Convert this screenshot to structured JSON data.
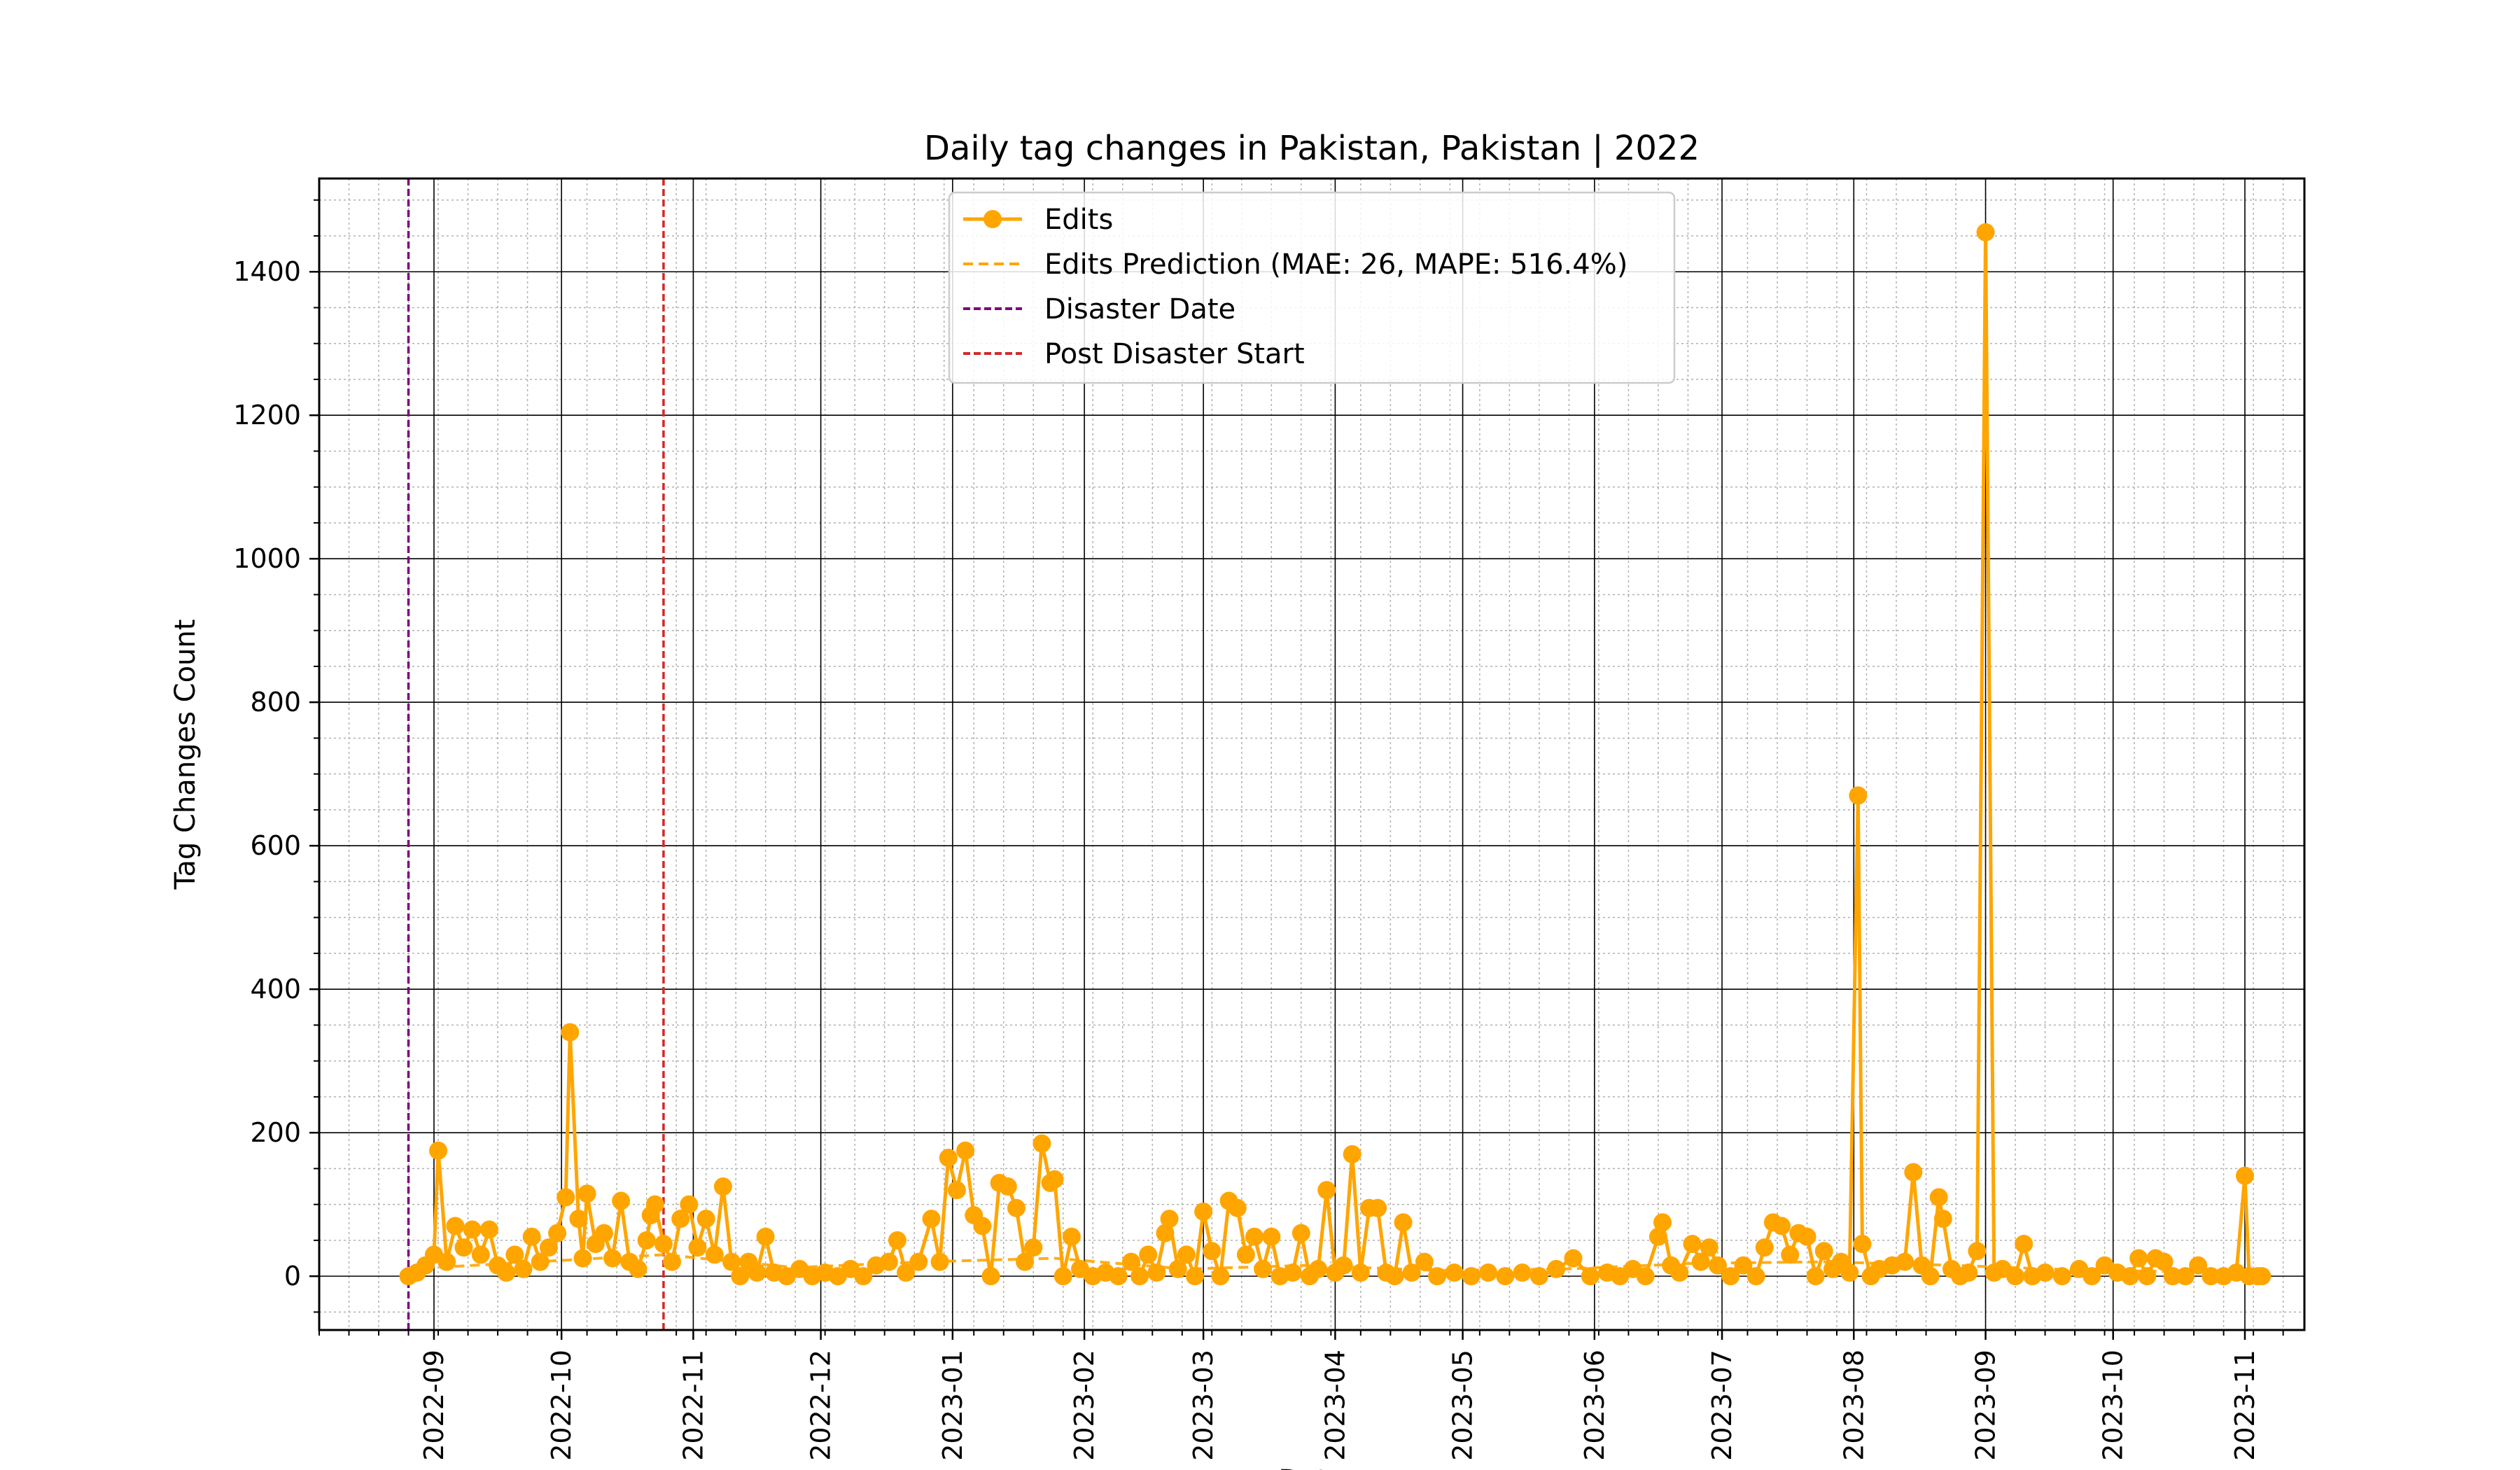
{
  "chart_data": {
    "type": "line",
    "title": "Daily tag changes in Pakistan, Pakistan | 2022",
    "xlabel": "Date",
    "ylabel": "Tag Changes Count",
    "xlim": [
      "2022-08-05",
      "2023-11-15"
    ],
    "ylim": [
      -75,
      1530
    ],
    "grid": true,
    "legend_position": "top-center",
    "y_ticks": [
      0,
      200,
      400,
      600,
      800,
      1000,
      1200,
      1400
    ],
    "x_ticks": [
      "2022-09",
      "2022-10",
      "2022-11",
      "2022-12",
      "2023-01",
      "2023-02",
      "2023-03",
      "2023-04",
      "2023-05",
      "2023-06",
      "2023-07",
      "2023-08",
      "2023-09",
      "2023-10",
      "2023-11"
    ],
    "x_tick_dates": [
      "2022-09-01",
      "2022-10-01",
      "2022-11-01",
      "2022-12-01",
      "2023-01-01",
      "2023-02-01",
      "2023-03-01",
      "2023-04-01",
      "2023-05-01",
      "2023-06-01",
      "2023-07-01",
      "2023-08-01",
      "2023-09-01",
      "2023-10-01",
      "2023-11-01"
    ],
    "vlines": [
      {
        "name": "Disaster Date",
        "date": "2022-08-26",
        "color": "#800080"
      },
      {
        "name": "Post Disaster Start",
        "date": "2022-10-25",
        "color": "#d62728"
      }
    ],
    "series": [
      {
        "name": "Edits",
        "color": "#FFA500",
        "points": [
          [
            "2022-08-26",
            0
          ],
          [
            "2022-08-28",
            5
          ],
          [
            "2022-08-30",
            15
          ],
          [
            "2022-09-01",
            30
          ],
          [
            "2022-09-02",
            175
          ],
          [
            "2022-09-04",
            20
          ],
          [
            "2022-09-06",
            70
          ],
          [
            "2022-09-08",
            40
          ],
          [
            "2022-09-10",
            65
          ],
          [
            "2022-09-12",
            30
          ],
          [
            "2022-09-14",
            65
          ],
          [
            "2022-09-16",
            15
          ],
          [
            "2022-09-18",
            5
          ],
          [
            "2022-09-20",
            30
          ],
          [
            "2022-09-22",
            10
          ],
          [
            "2022-09-24",
            55
          ],
          [
            "2022-09-26",
            20
          ],
          [
            "2022-09-28",
            40
          ],
          [
            "2022-09-30",
            60
          ],
          [
            "2022-10-02",
            110
          ],
          [
            "2022-10-03",
            340
          ],
          [
            "2022-10-05",
            80
          ],
          [
            "2022-10-06",
            25
          ],
          [
            "2022-10-07",
            115
          ],
          [
            "2022-10-09",
            45
          ],
          [
            "2022-10-11",
            60
          ],
          [
            "2022-10-13",
            25
          ],
          [
            "2022-10-15",
            105
          ],
          [
            "2022-10-17",
            20
          ],
          [
            "2022-10-19",
            10
          ],
          [
            "2022-10-21",
            50
          ],
          [
            "2022-10-22",
            85
          ],
          [
            "2022-10-23",
            100
          ],
          [
            "2022-10-25",
            45
          ],
          [
            "2022-10-27",
            20
          ],
          [
            "2022-10-29",
            80
          ],
          [
            "2022-10-31",
            100
          ],
          [
            "2022-11-02",
            40
          ],
          [
            "2022-11-04",
            80
          ],
          [
            "2022-11-06",
            30
          ],
          [
            "2022-11-08",
            125
          ],
          [
            "2022-11-10",
            20
          ],
          [
            "2022-11-12",
            0
          ],
          [
            "2022-11-14",
            20
          ],
          [
            "2022-11-16",
            5
          ],
          [
            "2022-11-18",
            55
          ],
          [
            "2022-11-20",
            5
          ],
          [
            "2022-11-23",
            0
          ],
          [
            "2022-11-26",
            10
          ],
          [
            "2022-11-29",
            0
          ],
          [
            "2022-12-02",
            5
          ],
          [
            "2022-12-05",
            0
          ],
          [
            "2022-12-08",
            10
          ],
          [
            "2022-12-11",
            0
          ],
          [
            "2022-12-14",
            15
          ],
          [
            "2022-12-17",
            20
          ],
          [
            "2022-12-19",
            50
          ],
          [
            "2022-12-21",
            5
          ],
          [
            "2022-12-24",
            20
          ],
          [
            "2022-12-27",
            80
          ],
          [
            "2022-12-29",
            20
          ],
          [
            "2022-12-31",
            165
          ],
          [
            "2023-01-02",
            120
          ],
          [
            "2023-01-04",
            175
          ],
          [
            "2023-01-06",
            85
          ],
          [
            "2023-01-08",
            70
          ],
          [
            "2023-01-10",
            0
          ],
          [
            "2023-01-12",
            130
          ],
          [
            "2023-01-14",
            125
          ],
          [
            "2023-01-16",
            95
          ],
          [
            "2023-01-18",
            20
          ],
          [
            "2023-01-20",
            40
          ],
          [
            "2023-01-22",
            185
          ],
          [
            "2023-01-24",
            130
          ],
          [
            "2023-01-25",
            135
          ],
          [
            "2023-01-27",
            0
          ],
          [
            "2023-01-29",
            55
          ],
          [
            "2023-01-31",
            10
          ],
          [
            "2023-02-03",
            0
          ],
          [
            "2023-02-06",
            5
          ],
          [
            "2023-02-09",
            0
          ],
          [
            "2023-02-12",
            20
          ],
          [
            "2023-02-14",
            0
          ],
          [
            "2023-02-16",
            30
          ],
          [
            "2023-02-18",
            5
          ],
          [
            "2023-02-20",
            60
          ],
          [
            "2023-02-21",
            80
          ],
          [
            "2023-02-23",
            10
          ],
          [
            "2023-02-25",
            30
          ],
          [
            "2023-02-27",
            0
          ],
          [
            "2023-03-01",
            90
          ],
          [
            "2023-03-03",
            35
          ],
          [
            "2023-03-05",
            0
          ],
          [
            "2023-03-07",
            105
          ],
          [
            "2023-03-09",
            95
          ],
          [
            "2023-03-11",
            30
          ],
          [
            "2023-03-13",
            55
          ],
          [
            "2023-03-15",
            10
          ],
          [
            "2023-03-17",
            55
          ],
          [
            "2023-03-19",
            0
          ],
          [
            "2023-03-22",
            5
          ],
          [
            "2023-03-24",
            60
          ],
          [
            "2023-03-26",
            0
          ],
          [
            "2023-03-28",
            10
          ],
          [
            "2023-03-30",
            120
          ],
          [
            "2023-04-01",
            5
          ],
          [
            "2023-04-03",
            15
          ],
          [
            "2023-04-05",
            170
          ],
          [
            "2023-04-07",
            5
          ],
          [
            "2023-04-09",
            95
          ],
          [
            "2023-04-11",
            95
          ],
          [
            "2023-04-13",
            5
          ],
          [
            "2023-04-15",
            0
          ],
          [
            "2023-04-17",
            75
          ],
          [
            "2023-04-19",
            5
          ],
          [
            "2023-04-22",
            20
          ],
          [
            "2023-04-25",
            0
          ],
          [
            "2023-04-29",
            5
          ],
          [
            "2023-05-03",
            0
          ],
          [
            "2023-05-07",
            5
          ],
          [
            "2023-05-11",
            0
          ],
          [
            "2023-05-15",
            5
          ],
          [
            "2023-05-19",
            0
          ],
          [
            "2023-05-23",
            10
          ],
          [
            "2023-05-27",
            25
          ],
          [
            "2023-05-31",
            0
          ],
          [
            "2023-06-04",
            5
          ],
          [
            "2023-06-07",
            0
          ],
          [
            "2023-06-10",
            10
          ],
          [
            "2023-06-13",
            0
          ],
          [
            "2023-06-16",
            55
          ],
          [
            "2023-06-17",
            75
          ],
          [
            "2023-06-19",
            15
          ],
          [
            "2023-06-21",
            5
          ],
          [
            "2023-06-24",
            45
          ],
          [
            "2023-06-26",
            20
          ],
          [
            "2023-06-28",
            40
          ],
          [
            "2023-06-30",
            15
          ],
          [
            "2023-07-03",
            0
          ],
          [
            "2023-07-06",
            15
          ],
          [
            "2023-07-09",
            0
          ],
          [
            "2023-07-11",
            40
          ],
          [
            "2023-07-13",
            75
          ],
          [
            "2023-07-15",
            70
          ],
          [
            "2023-07-17",
            30
          ],
          [
            "2023-07-19",
            60
          ],
          [
            "2023-07-21",
            55
          ],
          [
            "2023-07-23",
            0
          ],
          [
            "2023-07-25",
            35
          ],
          [
            "2023-07-27",
            10
          ],
          [
            "2023-07-29",
            20
          ],
          [
            "2023-07-31",
            5
          ],
          [
            "2023-08-02",
            670
          ],
          [
            "2023-08-03",
            45
          ],
          [
            "2023-08-05",
            0
          ],
          [
            "2023-08-07",
            10
          ],
          [
            "2023-08-10",
            15
          ],
          [
            "2023-08-13",
            20
          ],
          [
            "2023-08-15",
            145
          ],
          [
            "2023-08-17",
            15
          ],
          [
            "2023-08-19",
            0
          ],
          [
            "2023-08-21",
            110
          ],
          [
            "2023-08-22",
            80
          ],
          [
            "2023-08-24",
            10
          ],
          [
            "2023-08-26",
            0
          ],
          [
            "2023-08-28",
            5
          ],
          [
            "2023-08-30",
            35
          ],
          [
            "2023-09-01",
            1455
          ],
          [
            "2023-09-03",
            5
          ],
          [
            "2023-09-05",
            10
          ],
          [
            "2023-09-08",
            0
          ],
          [
            "2023-09-10",
            45
          ],
          [
            "2023-09-12",
            0
          ],
          [
            "2023-09-15",
            5
          ],
          [
            "2023-09-19",
            0
          ],
          [
            "2023-09-23",
            10
          ],
          [
            "2023-09-26",
            0
          ],
          [
            "2023-09-29",
            15
          ],
          [
            "2023-10-02",
            5
          ],
          [
            "2023-10-05",
            0
          ],
          [
            "2023-10-07",
            25
          ],
          [
            "2023-10-09",
            0
          ],
          [
            "2023-10-11",
            25
          ],
          [
            "2023-10-13",
            20
          ],
          [
            "2023-10-15",
            0
          ],
          [
            "2023-10-18",
            0
          ],
          [
            "2023-10-21",
            15
          ],
          [
            "2023-10-24",
            0
          ],
          [
            "2023-10-27",
            0
          ],
          [
            "2023-10-30",
            5
          ],
          [
            "2023-11-01",
            140
          ],
          [
            "2023-11-02",
            0
          ],
          [
            "2023-11-04",
            0
          ],
          [
            "2023-11-05",
            0
          ]
        ]
      },
      {
        "name": "Edits Prediction (MAE: 26, MAPE: 516.4%)",
        "color": "#FFA500",
        "dashed": true,
        "points": [
          [
            "2022-08-26",
            10
          ],
          [
            "2022-09-25",
            20
          ],
          [
            "2022-10-25",
            30
          ],
          [
            "2022-11-25",
            12
          ],
          [
            "2022-12-25",
            20
          ],
          [
            "2023-01-25",
            25
          ],
          [
            "2023-02-25",
            10
          ],
          [
            "2023-03-25",
            15
          ],
          [
            "2023-04-25",
            8
          ],
          [
            "2023-05-25",
            10
          ],
          [
            "2023-06-25",
            18
          ],
          [
            "2023-07-25",
            20
          ],
          [
            "2023-08-25",
            15
          ],
          [
            "2023-09-25",
            8
          ],
          [
            "2023-10-25",
            6
          ],
          [
            "2023-11-05",
            6
          ]
        ]
      }
    ]
  }
}
